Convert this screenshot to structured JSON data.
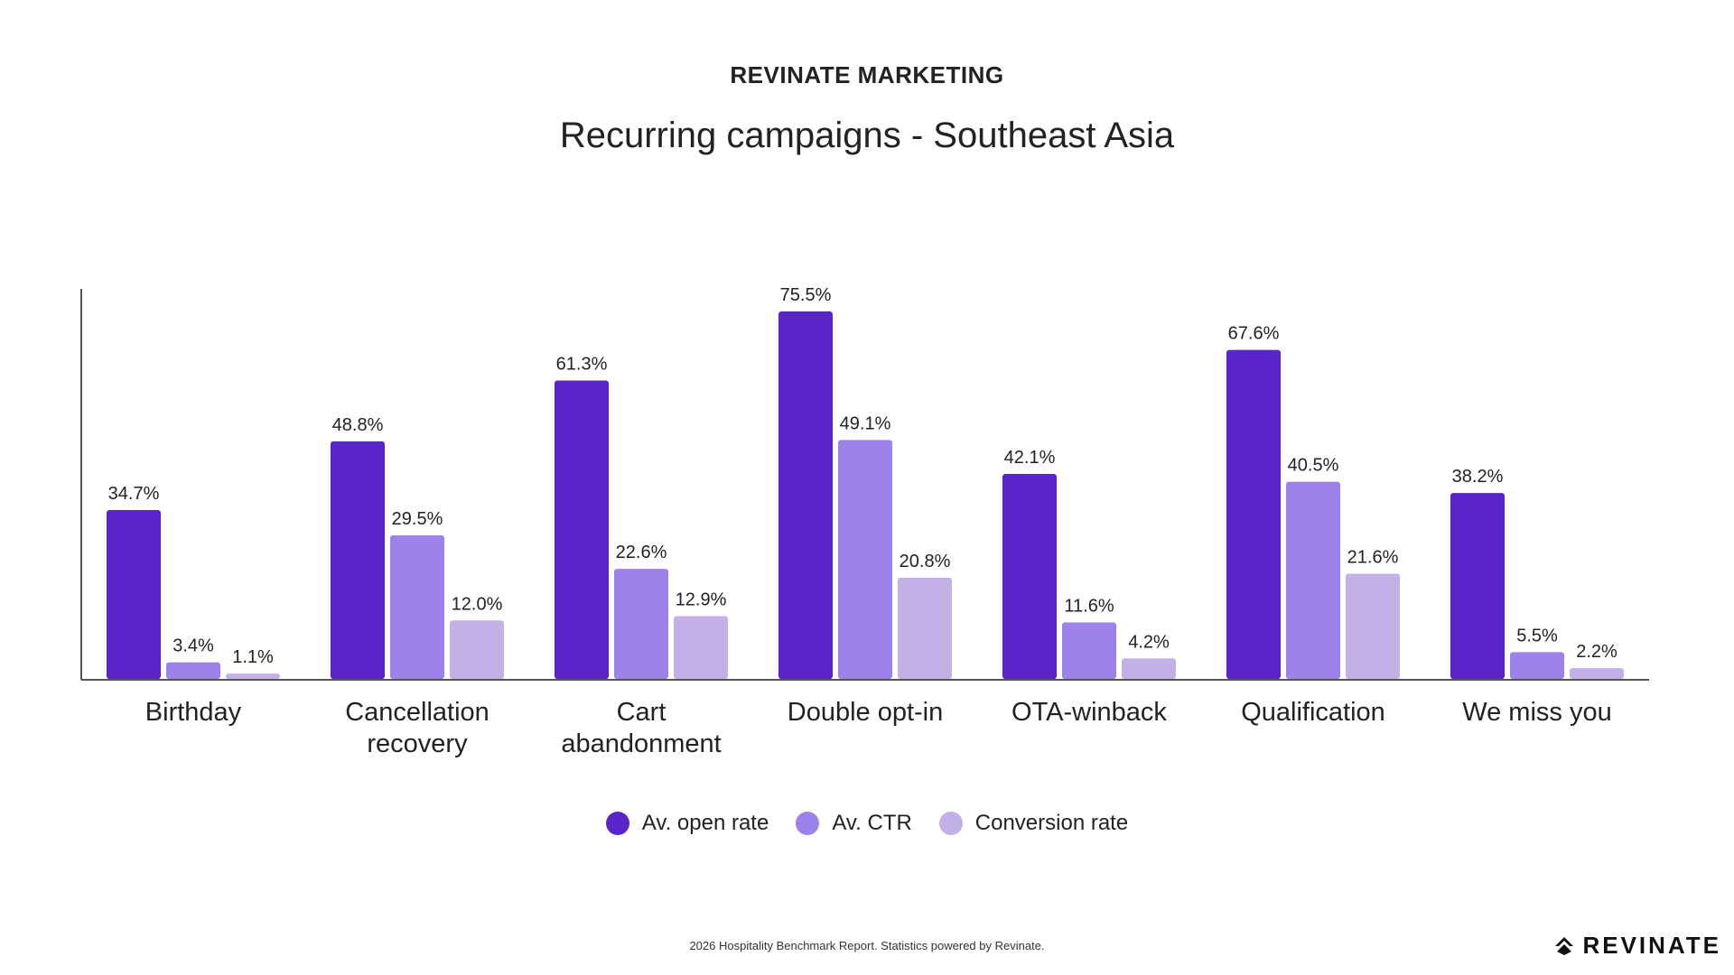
{
  "header": {
    "eyebrow": "REVINATE MARKETING",
    "title": "Recurring campaigns - Southeast Asia"
  },
  "chart_data": {
    "type": "bar",
    "title": "Recurring campaigns - Southeast Asia",
    "xlabel": "",
    "ylabel": "",
    "ylim": [
      0,
      80
    ],
    "grid": false,
    "legend_position": "bottom",
    "categories": [
      [
        "Birthday"
      ],
      [
        "Cancellation",
        "recovery"
      ],
      [
        "Cart",
        "abandonment"
      ],
      [
        "Double opt-in"
      ],
      [
        "OTA-winback"
      ],
      [
        "Qualification"
      ],
      [
        "We miss you"
      ]
    ],
    "series": [
      {
        "name": "Av. open rate",
        "color": "#5a25c8",
        "values": [
          34.7,
          48.8,
          61.3,
          75.5,
          42.1,
          67.6,
          38.2
        ]
      },
      {
        "name": "Av. CTR",
        "color": "#9d82ec",
        "values": [
          3.4,
          29.5,
          22.6,
          49.1,
          11.6,
          40.5,
          5.5
        ]
      },
      {
        "name": "Conversion rate",
        "color": "#c2b0e6",
        "values": [
          1.1,
          12.0,
          12.9,
          20.8,
          4.2,
          21.6,
          2.2
        ]
      }
    ],
    "value_suffix": "%"
  },
  "footer": {
    "note": "2026 Hospitality Benchmark Report. Statistics powered by Revinate."
  },
  "brand": {
    "name": "REVINATE",
    "logo_icon": "revinate-logo-icon"
  }
}
